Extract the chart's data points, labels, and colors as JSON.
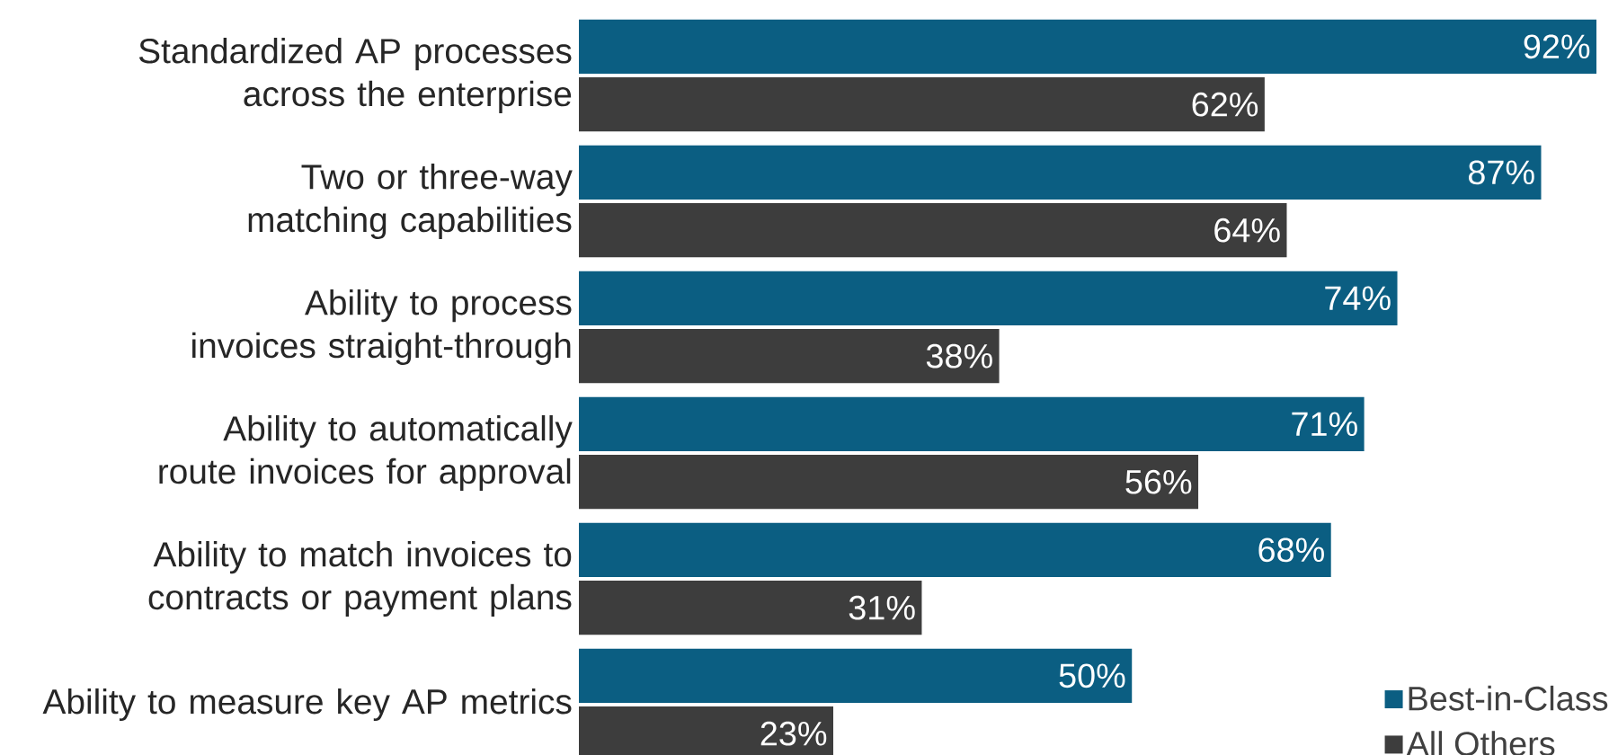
{
  "chart_data": {
    "type": "bar",
    "orientation": "horizontal",
    "categories": [
      "Standardized AP processes across the enterprise",
      "Two or three-way matching capabilities",
      "Ability to process invoices straight-through",
      "Ability to automatically route invoices for approval",
      "Ability to match invoices to contracts or payment plans",
      "Ability to measure key AP metrics"
    ],
    "series": [
      {
        "name": "Best-in-Class",
        "color": "#0b5e82",
        "values": [
          92,
          87,
          74,
          71,
          68,
          50
        ],
        "value_labels": [
          "92%",
          "87%",
          "74%",
          "71%",
          "68%",
          "50%"
        ]
      },
      {
        "name": "All Others",
        "color": "#3d3d3d",
        "values": [
          62,
          64,
          38,
          56,
          31,
          23
        ],
        "value_labels": [
          "62%",
          "64%",
          "38%",
          "56%",
          "31%",
          "23%"
        ]
      }
    ],
    "legend": "bottom right",
    "tick_labels": "y",
    "grid": false
  }
}
